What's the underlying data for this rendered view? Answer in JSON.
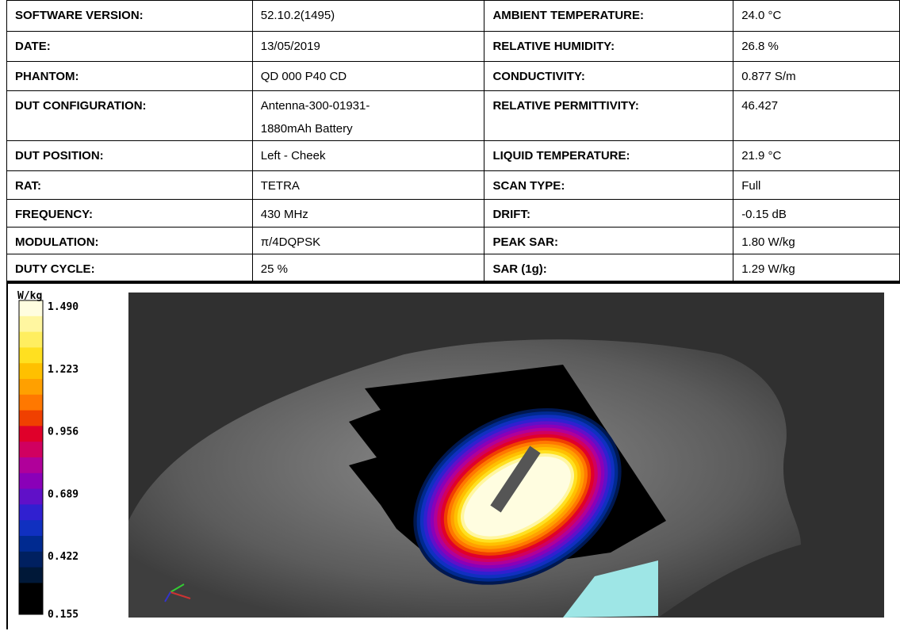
{
  "table": {
    "rows": [
      [
        "SOFTWARE VERSION:",
        "52.10.2(1495)",
        "AMBIENT TEMPERATURE:",
        "24.0 °C"
      ],
      [
        "DATE:",
        "13/05/2019",
        "RELATIVE HUMIDITY:",
        "26.8 %"
      ],
      [
        "PHANTOM:",
        "QD 000 P40 CD",
        "CONDUCTIVITY:",
        "0.877 S/m"
      ],
      [
        "DUT CONFIGURATION:",
        "Antenna-300-01931-\n1880mAh Battery",
        "RELATIVE PERMITTIVITY:",
        "46.427"
      ],
      [
        "DUT POSITION:",
        "Left - Cheek",
        "LIQUID TEMPERATURE:",
        "21.9 °C"
      ],
      [
        "RAT:",
        "TETRA",
        "SCAN TYPE:",
        "Full"
      ],
      [
        "FREQUENCY:",
        "430 MHz",
        "DRIFT:",
        "-0.15 dB"
      ],
      [
        "MODULATION:",
        "π/4DQPSK",
        "PEAK SAR:",
        "1.80 W/kg"
      ],
      [
        "DUTY CYCLE:",
        "25 %",
        "SAR (1g):",
        "1.29 W/kg"
      ]
    ]
  },
  "legend": {
    "unit": "W/kg",
    "ticks": [
      "1.490",
      "1.223",
      "0.956",
      "0.689",
      "0.422",
      "0.155"
    ]
  }
}
